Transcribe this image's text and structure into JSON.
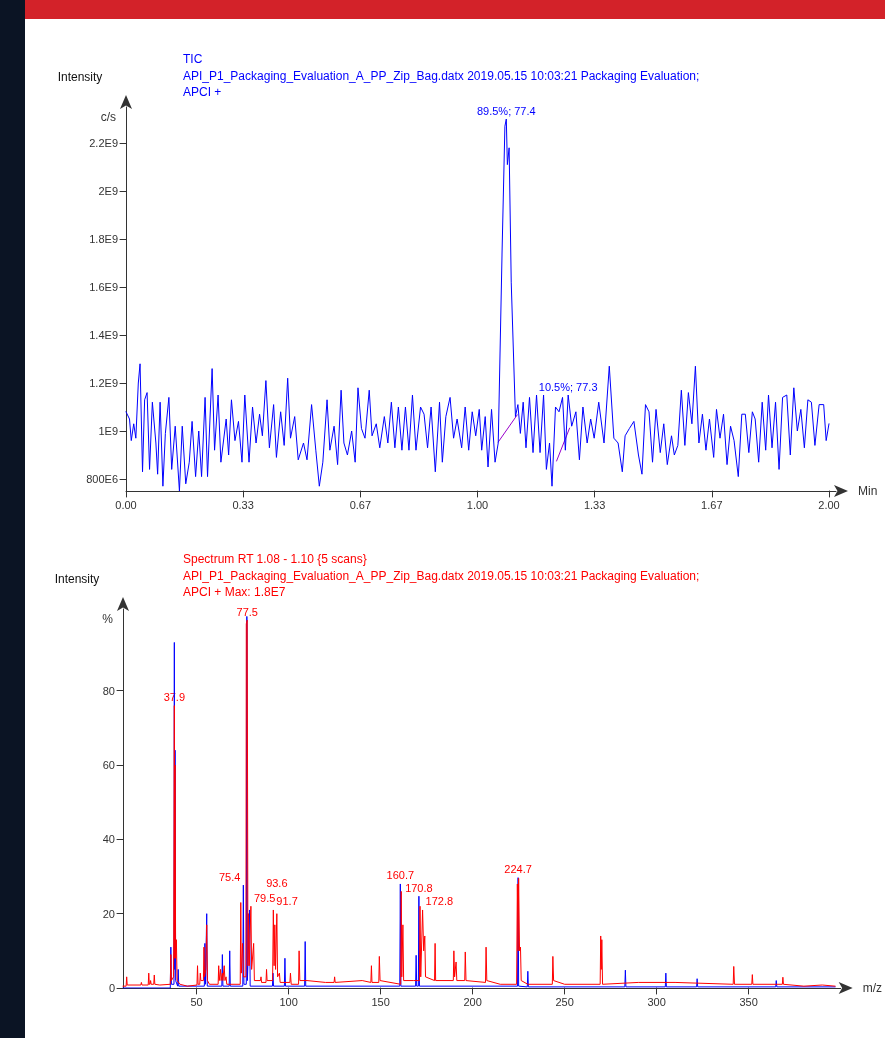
{
  "chart_data": [
    {
      "type": "line",
      "title": "TIC",
      "subtitle": "API_P1_Packaging_Evaluation_A_PP_Zip_Bag.datx 2019.05.15 10:03:21 Packaging Evaluation;\nAPCI +",
      "xlabel": "Min",
      "ylabel": "Intensity",
      "annotations": [
        "c/s",
        {
          "text": "89.5%; 77.4",
          "x": 1.082,
          "y": 2300000000.0
        },
        {
          "text": "10.5%; 77.3",
          "x": 1.258,
          "y": 1150000000.0
        }
      ],
      "xlim": [
        0,
        2.02
      ],
      "ylim": [
        750000000.0,
        2350000000.0
      ],
      "xticks": [
        {
          "value": 0,
          "label": "0.00"
        },
        {
          "value": 0.3333,
          "label": "0.33"
        },
        {
          "value": 0.6667,
          "label": "0.67"
        },
        {
          "value": 1,
          "label": "1.00"
        },
        {
          "value": 1.3333,
          "label": "1.33"
        },
        {
          "value": 1.6667,
          "label": "1.67"
        },
        {
          "value": 2,
          "label": "2.00"
        }
      ],
      "yticks": [
        {
          "value": 800000000.0,
          "label": "800E6"
        },
        {
          "value": 1000000000.0,
          "label": "1E9"
        },
        {
          "value": 1200000000.0,
          "label": "1.2E9"
        },
        {
          "value": 1400000000.0,
          "label": "1.4E9"
        },
        {
          "value": 1600000000.0,
          "label": "1.6E9"
        },
        {
          "value": 1800000000.0,
          "label": "1.8E9"
        },
        {
          "value": 2000000000.0,
          "label": "2E9"
        },
        {
          "value": 2200000000.0,
          "label": "2.2E9"
        }
      ],
      "series": [
        {
          "color": "#9900cc",
          "x": [
            1.059,
            1.113
          ],
          "values": [
            954000000.0,
            1067000000.0
          ]
        },
        {
          "color": "#9900cc",
          "x": [
            1.225,
            1.262
          ],
          "values": [
            875000000.0,
            1012000000.0
          ]
        },
        {
          "color": "#0000ff",
          "x": [
            0,
            0.01,
            0.015,
            0.022,
            0.028,
            0.035,
            0.04,
            0.047,
            0.053,
            0.06,
            0.067,
            0.075,
            0.085,
            0.09,
            0.097,
            0.105,
            0.112,
            0.122,
            0.13,
            0.14,
            0.152,
            0.16,
            0.17,
            0.18,
            0.188,
            0.198,
            0.207,
            0.215,
            0.225,
            0.232,
            0.245,
            0.252,
            0.262,
            0.27,
            0.285,
            0.292,
            0.3,
            0.31,
            0.32,
            0.33,
            0.338,
            0.35,
            0.36,
            0.37,
            0.38,
            0.388,
            0.398,
            0.408,
            0.42,
            0.428,
            0.44,
            0.45,
            0.46,
            0.468,
            0.48,
            0.49,
            0.505,
            0.515,
            0.528,
            0.54,
            0.55,
            0.56,
            0.572,
            0.58,
            0.592,
            0.602,
            0.612,
            0.62,
            0.63,
            0.642,
            0.652,
            0.66,
            0.67,
            0.68,
            0.692,
            0.7,
            0.712,
            0.722,
            0.735,
            0.745,
            0.755,
            0.765,
            0.775,
            0.785,
            0.795,
            0.805,
            0.815,
            0.825,
            0.838,
            0.848,
            0.858,
            0.868,
            0.88,
            0.892,
            0.9,
            0.91,
            0.922,
            0.932,
            0.942,
            0.955,
            0.965,
            0.975,
            0.985,
            0.995,
            1.005,
            1.012,
            1.022,
            1.03,
            1.04,
            1.05,
            1.059,
            1.07,
            1.078,
            1.082,
            1.085,
            1.09,
            1.096,
            1.108,
            1.115,
            1.122,
            1.13,
            1.138,
            1.148,
            1.158,
            1.168,
            1.178,
            1.188,
            1.196,
            1.205,
            1.212,
            1.222,
            1.232,
            1.242,
            1.25,
            1.258,
            1.268,
            1.28,
            1.29,
            1.3,
            1.312,
            1.322,
            1.332,
            1.345,
            1.36,
            1.375,
            1.388,
            1.4,
            1.412,
            1.42,
            1.432,
            1.445,
            1.458,
            1.468,
            1.478,
            1.488,
            1.498,
            1.508,
            1.52,
            1.53,
            1.54,
            1.552,
            1.56,
            1.57,
            1.58,
            1.59,
            1.6,
            1.61,
            1.62,
            1.63,
            1.64,
            1.65,
            1.66,
            1.672,
            1.68,
            1.69,
            1.7,
            1.71,
            1.72,
            1.73,
            1.742,
            1.752,
            1.762,
            1.772,
            1.782,
            1.79,
            1.8,
            1.81,
            1.82,
            1.828,
            1.838,
            1.848,
            1.858,
            1.868,
            1.88,
            1.89,
            1.9,
            1.91,
            1.92,
            1.93,
            1.94,
            1.95,
            1.96,
            1.972,
            1.985,
            1.992,
            2.0
          ],
          "values": [
            1080000000.0,
            1050000000.0,
            960000000.0,
            1030000000.0,
            970000000.0,
            1200000000.0,
            1280000000.0,
            830000000.0,
            1130000000.0,
            1160000000.0,
            840000000.0,
            1120000000.0,
            950000000.0,
            820000000.0,
            1120000000.0,
            770000000.0,
            990000000.0,
            1140000000.0,
            840000000.0,
            1020000000.0,
            750000000.0,
            1020000000.0,
            780000000.0,
            870000000.0,
            1040000000.0,
            810000000.0,
            1000000000.0,
            810000000.0,
            1140000000.0,
            810000000.0,
            1260000000.0,
            920000000.0,
            1150000000.0,
            870000000.0,
            1050000000.0,
            900000000.0,
            1130000000.0,
            960000000.0,
            1040000000.0,
            870000000.0,
            1150000000.0,
            870000000.0,
            1100000000.0,
            950000000.0,
            1070000000.0,
            980000000.0,
            1210000000.0,
            930000000.0,
            1110000000.0,
            890000000.0,
            1080000000.0,
            940000000.0,
            1220000000.0,
            970000000.0,
            1060000000.0,
            880000000.0,
            950000000.0,
            880000000.0,
            1110000000.0,
            920000000.0,
            770000000.0,
            870000000.0,
            1130000000.0,
            920000000.0,
            1020000000.0,
            860000000.0,
            1170000000.0,
            950000000.0,
            900000000.0,
            1000000000.0,
            870000000.0,
            1180000000.0,
            1010000000.0,
            970000000.0,
            1170000000.0,
            980000000.0,
            1030000000.0,
            930000000.0,
            1060000000.0,
            950000000.0,
            1120000000.0,
            930000000.0,
            1100000000.0,
            920000000.0,
            1100000000.0,
            920000000.0,
            1150000000.0,
            920000000.0,
            1100000000.0,
            1070000000.0,
            930000000.0,
            1100000000.0,
            830000000.0,
            1120000000.0,
            870000000.0,
            1060000000.0,
            1140000000.0,
            970000000.0,
            1050000000.0,
            930000000.0,
            1100000000.0,
            920000000.0,
            1080000000.0,
            980000000.0,
            1090000000.0,
            920000000.0,
            1060000000.0,
            850000000.0,
            1090000000.0,
            870000000.0,
            950000000.0,
            1750000000.0,
            2270000000.0,
            2300000000.0,
            2110000000.0,
            2180000000.0,
            1620000000.0,
            1060000000.0,
            1110000000.0,
            990000000.0,
            1120000000.0,
            930000000.0,
            1140000000.0,
            910000000.0,
            1150000000.0,
            910000000.0,
            1150000000.0,
            840000000.0,
            950000000.0,
            770000000.0,
            1100000000.0,
            1080000000.0,
            1140000000.0,
            920000000.0,
            1150000000.0,
            1020000000.0,
            1080000000.0,
            880000000.0,
            1100000000.0,
            950000000.0,
            1050000000.0,
            970000000.0,
            1120000000.0,
            950000000.0,
            1270000000.0,
            970000000.0,
            950000000.0,
            830000000.0,
            980000000.0,
            1010000000.0,
            1040000000.0,
            900000000.0,
            820000000.0,
            1110000000.0,
            1080000000.0,
            870000000.0,
            1090000000.0,
            910000000.0,
            1030000000.0,
            860000000.0,
            980000000.0,
            900000000.0,
            940000000.0,
            1170000000.0,
            940000000.0,
            1160000000.0,
            1030000000.0,
            1270000000.0,
            950000000.0,
            1070000000.0,
            920000000.0,
            1050000000.0,
            890000000.0,
            1090000000.0,
            970000000.0,
            1070000000.0,
            860000000.0,
            1020000000.0,
            960000000.0,
            810000000.0,
            1070000000.0,
            1070000000.0,
            910000000.0,
            1080000000.0,
            1050000000.0,
            870000000.0,
            1120000000.0,
            920000000.0,
            1150000000.0,
            930000000.0,
            1120000000.0,
            840000000.0,
            1140000000.0,
            1150000000.0,
            900000000.0,
            1180000000.0,
            1000000000.0,
            1090000000.0,
            930000000.0,
            1130000000.0,
            1120000000.0,
            940000000.0,
            1110000000.0,
            1110000000.0,
            960000000.0,
            1030000000.0
          ]
        }
      ]
    },
    {
      "type": "line",
      "title": "Spectrum RT 1.08 - 1.10 {5 scans}",
      "subtitle": "API_P1_Packaging_Evaluation_A_PP_Zip_Bag.datx 2019.05.15 10:03:21 Packaging Evaluation;\nAPCI + Max: 1.8E7",
      "xlabel": "m/z",
      "ylabel": "Intensity",
      "annotations": [
        "%",
        {
          "text": "37.9",
          "x": 37.9,
          "y": 76
        },
        {
          "text": "77.5",
          "x": 77.5,
          "y": 99
        },
        {
          "text": "75.4",
          "x": 75.4,
          "y": 27.7
        },
        {
          "text": "79.5",
          "x": 79.5,
          "y": 22
        },
        {
          "text": "91.7",
          "x": 91.7,
          "y": 21
        },
        {
          "text": "93.6",
          "x": 93.6,
          "y": 20
        },
        {
          "text": "160.7",
          "x": 160.7,
          "y": 28
        },
        {
          "text": "170.8",
          "x": 170.8,
          "y": 24.7
        },
        {
          "text": "172.8",
          "x": 172.8,
          "y": 21
        },
        {
          "text": "224.7",
          "x": 224.7,
          "y": 29.7
        }
      ],
      "xlim": [
        10,
        400
      ],
      "ylim": [
        0,
        102
      ],
      "xticks": [
        50,
        100,
        150,
        200,
        250,
        300,
        350
      ],
      "yticks": [
        0,
        20,
        40,
        60,
        80
      ],
      "series": [
        {
          "color": "#0000ff",
          "x": [
            10,
            35.7,
            36,
            36.3,
            37.7,
            37.9,
            38.1,
            38.3,
            38.6,
            39.7,
            40,
            40.3,
            54.2,
            54.5,
            54.8,
            55.5,
            55.8,
            63.7,
            64,
            64.3,
            67.7,
            68,
            68.3,
            75.1,
            75.4,
            75.7,
            77,
            77.3,
            77.6,
            78.8,
            79.1,
            91.2,
            91.5,
            91.8,
            97.7,
            98,
            98.3,
            108.7,
            109,
            109.3,
            160.4,
            160.7,
            161,
            169,
            169.3,
            169.6,
            170.5,
            170.8,
            171.1,
            224.4,
            224.7,
            225,
            229.7,
            230,
            230.3,
            282.7,
            283,
            283.3,
            304.7,
            305,
            305.3,
            321.7,
            322,
            322.3,
            364.7,
            365,
            365.3,
            397
          ],
          "values": [
            0,
            0,
            11,
            1,
            1,
            93,
            5,
            64,
            2,
            0.5,
            5,
            0.5,
            0.5,
            12,
            1,
            20,
            0.5,
            0.5,
            9,
            0.5,
            0.5,
            10,
            0.5,
            0.5,
            27.7,
            1,
            1,
            100,
            2,
            21,
            0.5,
            0.5,
            4,
            0.5,
            0.5,
            8,
            0.5,
            0.5,
            12.5,
            0.5,
            0.5,
            28,
            0.5,
            0.5,
            8.8,
            0.5,
            0.5,
            24.7,
            0.5,
            0.5,
            29.7,
            0.5,
            0.3,
            4.5,
            0.3,
            0.3,
            4.8,
            0.3,
            0.3,
            4,
            0.3,
            0.3,
            2.5,
            0.3,
            0.3,
            2,
            0.3,
            0.3
          ]
        },
        {
          "color": "#ff0000",
          "x": [
            10,
            11.7,
            12,
            12.3,
            19.7,
            20,
            20.3,
            23.7,
            24,
            24.3,
            24.7,
            25,
            25.3,
            26.7,
            27,
            27.3,
            30,
            35.7,
            36,
            36.3,
            37.5,
            37.9,
            38.1,
            38.3,
            38.6,
            39,
            39.4,
            41,
            45,
            50.2,
            50.5,
            50.8,
            51.7,
            52,
            52.3,
            53.7,
            54,
            54.3,
            55,
            55.5,
            55.9,
            57,
            61.7,
            62,
            62.3,
            63,
            63.3,
            64,
            64.3,
            65,
            65.4,
            66,
            66.4,
            73.7,
            74,
            74.3,
            75,
            75.5,
            76.8,
            77,
            77.5,
            77.9,
            78.2,
            78.6,
            79.5,
            79.9,
            81,
            81.4,
            84.7,
            85,
            85.3,
            87.7,
            88,
            88.3,
            91.3,
            91.7,
            92.1,
            92.5,
            92.9,
            93.6,
            94,
            95,
            95.4,
            100.7,
            101,
            101.4,
            105.4,
            105.7,
            106.1,
            110,
            120,
            124.7,
            125,
            125.3,
            140,
            144.7,
            145,
            145.3,
            149,
            149.3,
            149.7,
            160.9,
            161.2,
            161.5,
            162.1,
            162.5,
            168,
            171.1,
            171.4,
            171.8,
            172.8,
            173.4,
            174,
            174.4,
            179.3,
            179.6,
            179.9,
            189.5,
            189.8,
            190.2,
            191,
            191.4,
            195.7,
            196,
            196.4,
            207,
            207.3,
            207.7,
            215,
            223.9,
            224.3,
            224.7,
            225,
            225.5,
            226,
            226.4,
            230,
            243.3,
            243.6,
            244,
            250,
            269.3,
            269.6,
            269.9,
            270.2,
            270.6,
            290,
            310,
            341.6,
            341.9,
            342.3,
            351.7,
            352,
            352.3,
            368.3,
            368.6,
            368.9,
            380,
            390,
            397
          ],
          "values": [
            0.5,
            0.5,
            3,
            0.8,
            0.8,
            1.5,
            0.8,
            0.8,
            4,
            1,
            1,
            2,
            1,
            1,
            3.5,
            1,
            0.8,
            1,
            9,
            2,
            3,
            76,
            8,
            60,
            8,
            13,
            2,
            1,
            0.5,
            0.8,
            6,
            1,
            1,
            4,
            2,
            2,
            11,
            3,
            5,
            17,
            2,
            1,
            1,
            6,
            2,
            5,
            2,
            4,
            2,
            6,
            2,
            3,
            1,
            1,
            23,
            4,
            12,
            3,
            3,
            98,
            99,
            6,
            20,
            6,
            22,
            5,
            12,
            2,
            2,
            3,
            1.5,
            1.5,
            5,
            2,
            2,
            21,
            6,
            17,
            5,
            20,
            3,
            4,
            1.5,
            1.5,
            4,
            1,
            1,
            10,
            2,
            2,
            1.5,
            1.5,
            3,
            1.5,
            2,
            1.5,
            6,
            1.5,
            1.5,
            8.5,
            2,
            1,
            26,
            3,
            17,
            2,
            2,
            2,
            22,
            3,
            21,
            10,
            14,
            3,
            2,
            12,
            2,
            2,
            10,
            3,
            7,
            2,
            2,
            9.7,
            2,
            1.5,
            11,
            2,
            1,
            1,
            28,
            10,
            29.5,
            10,
            11,
            2,
            1,
            1,
            8.5,
            2,
            1,
            1,
            14,
            5,
            13,
            1,
            1.5,
            1.5,
            1,
            5.8,
            1,
            1,
            3.6,
            1,
            1,
            2.9,
            1,
            0.5,
            0.8,
            0.5
          ]
        }
      ]
    }
  ]
}
